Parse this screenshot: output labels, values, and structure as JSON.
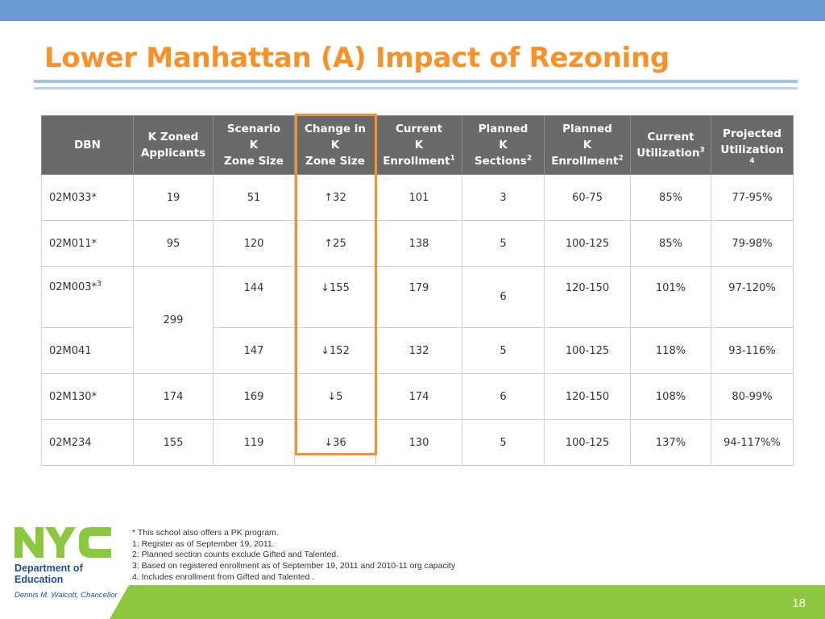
{
  "title": "Lower Manhattan (A) Impact of Rezoning",
  "table": {
    "headers": [
      [
        "DBN"
      ],
      [
        "K Zoned",
        "Applicants"
      ],
      [
        "Scenario",
        "K",
        "Zone Size"
      ],
      [
        "Change in",
        "K",
        "Zone Size"
      ],
      [
        "Current",
        "K",
        "Enrollment"
      ],
      [
        "Planned",
        "K",
        "Sections"
      ],
      [
        "Planned",
        "K",
        "Enrollment"
      ],
      [
        "Current",
        "Utilization"
      ],
      [
        "Projected",
        "Utilization"
      ]
    ],
    "header_sups": {
      "current_enrollment": "1",
      "planned_sections": "2",
      "planned_enrollment": "2",
      "current_utilization": "3",
      "projected_utilization": "4"
    },
    "rows": [
      {
        "dbn": "02M033*",
        "applicants": "19",
        "scenario": "51",
        "change": "↑32",
        "current_enroll": "101",
        "sections": "3",
        "planned_enroll": "60-75",
        "current_util": "85%",
        "projected_util": "77-95%"
      },
      {
        "dbn": "02M011*",
        "applicants": "95",
        "scenario": "120",
        "change": "↑25",
        "current_enroll": "138",
        "sections": "5",
        "planned_enroll": "100-125",
        "current_util": "85%",
        "projected_util": "79-98%"
      },
      {
        "dbn": "02M003*",
        "dbn_sup": "3",
        "applicants": "299",
        "scenario": "144",
        "change": "↓155",
        "current_enroll": "179",
        "sections": "6",
        "planned_enroll": "120-150",
        "current_util": "101%",
        "projected_util": "97-120%"
      },
      {
        "dbn": "02M041",
        "scenario": "147",
        "change": "↓152",
        "current_enroll": "132",
        "sections": "5",
        "planned_enroll": "100-125",
        "current_util": "118%",
        "projected_util": "93-116%"
      },
      {
        "dbn": "02M130*",
        "applicants": "174",
        "scenario": "169",
        "change": "↓5",
        "current_enroll": "174",
        "sections": "6",
        "planned_enroll": "120-150",
        "current_util": "108%",
        "projected_util": "80-99%"
      },
      {
        "dbn": "02M234",
        "applicants": "155",
        "scenario": "119",
        "change": "↓36",
        "current_enroll": "130",
        "sections": "5",
        "planned_enroll": "100-125",
        "current_util": "137%",
        "projected_util": "94-117%%"
      }
    ]
  },
  "footnotes": [
    "* This school also offers a PK program.",
    "1: Register as of September 19, 2011.",
    "2: Planned section counts exclude Gifted and Talented.",
    "3: Based on registered enrollment as of September 19, 2011 and 2010-11 org capacity",
    "4. Includes enrollment from Gifted and Talented ."
  ],
  "logo": {
    "letters": "NYC",
    "line1": "Department of",
    "line2": "Education",
    "chancellor": "Dennis M. Walcott, Chancellor"
  },
  "page_number": "18",
  "colors": {
    "title": "#f7922a",
    "top_bar": "#6b9bd1",
    "header_bg": "#6a6a6a",
    "highlight": "#f7922a",
    "nyc_green": "#8dc63f",
    "nyc_blue": "#1f4e96"
  }
}
